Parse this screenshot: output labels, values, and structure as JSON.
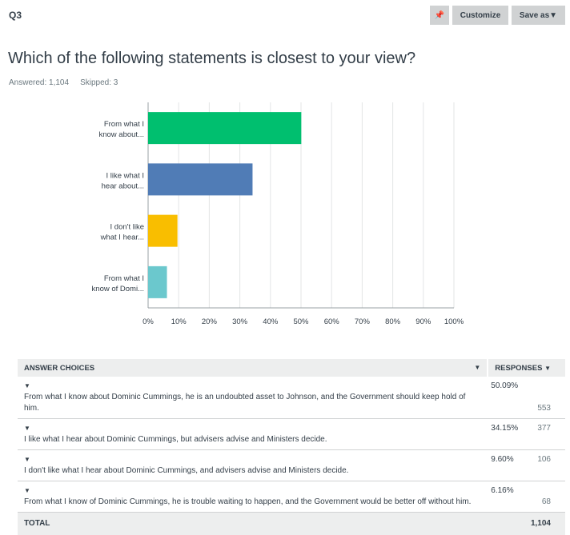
{
  "header": {
    "question_number": "Q3",
    "customize_label": "Customize",
    "save_as_label": "Save as▼",
    "pin_icon": "pin-icon"
  },
  "question": {
    "title": "Which of the following statements is closest to your view?",
    "answered": "Answered: 1,104",
    "skipped": "Skipped: 3"
  },
  "chart_data": {
    "type": "bar",
    "orientation": "horizontal",
    "categories": [
      [
        "From what I",
        "know about..."
      ],
      [
        "I like what I",
        "hear about..."
      ],
      [
        "I don't like",
        "what I hear..."
      ],
      [
        "From what I",
        "know of Domi..."
      ]
    ],
    "values": [
      50.09,
      34.15,
      9.6,
      6.16
    ],
    "colors": [
      "#00bf6f",
      "#507cb6",
      "#f9be00",
      "#6bc8cd"
    ],
    "xlim": [
      0,
      100
    ],
    "xticks": [
      "0%",
      "10%",
      "20%",
      "30%",
      "40%",
      "50%",
      "60%",
      "70%",
      "80%",
      "90%",
      "100%"
    ],
    "grid": true
  },
  "table": {
    "col_choices": "ANSWER CHOICES",
    "col_responses": "RESPONSES",
    "rows": [
      {
        "text": "From what I know about Dominic Cummings, he is an undoubted asset to Johnson, and the Government should keep hold of him.",
        "pct": "50.09%",
        "count": "553"
      },
      {
        "text": "I like what I hear about Dominic Cummings, but advisers advise and Ministers decide.",
        "pct": "34.15%",
        "count": "377"
      },
      {
        "text": "I don't like what I hear about Dominic Cummings, and advisers advise and Ministers decide.",
        "pct": "9.60%",
        "count": "106"
      },
      {
        "text": "From what I know of Dominic Cummings, he is trouble waiting to happen, and the Government would be better off without him.",
        "pct": "6.16%",
        "count": "68"
      }
    ],
    "total_label": "TOTAL",
    "total": "1,104"
  }
}
